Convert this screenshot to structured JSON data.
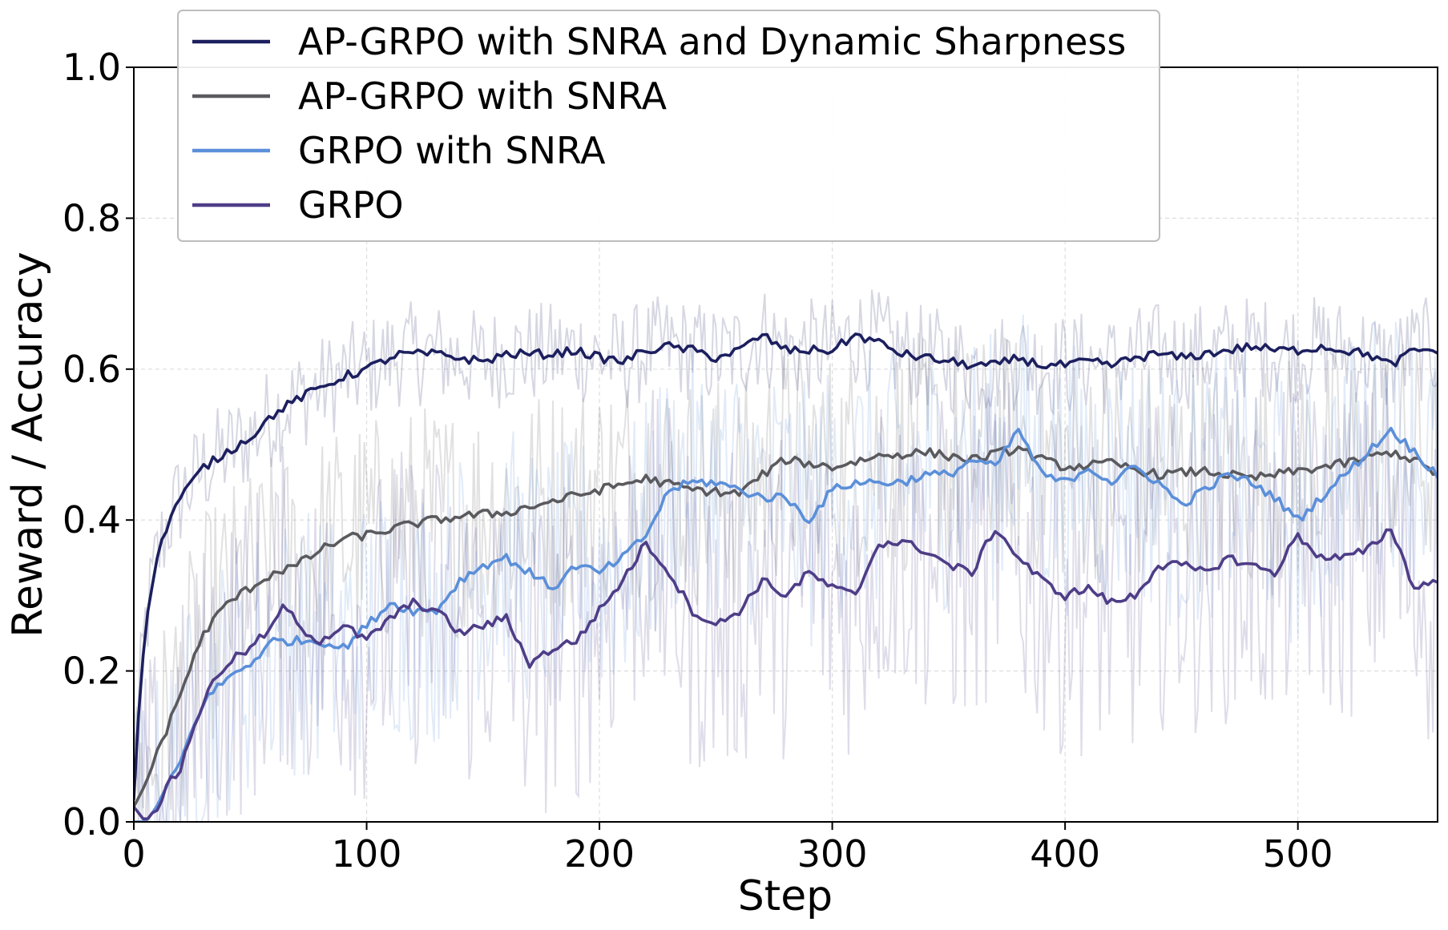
{
  "chart_data": {
    "type": "line",
    "title": "",
    "xlabel": "Step",
    "ylabel": "Reward / Accuracy",
    "xlim": [
      0,
      560
    ],
    "ylim": [
      0,
      1.0
    ],
    "x_ticks": [
      0,
      100,
      200,
      300,
      400,
      500
    ],
    "x_tick_labels": [
      "0",
      "100",
      "200",
      "300",
      "400",
      "500"
    ],
    "y_ticks": [
      0.0,
      0.2,
      0.4,
      0.6,
      0.8,
      1.0
    ],
    "y_tick_labels": [
      "0.0",
      "0.2",
      "0.4",
      "0.6",
      "0.8",
      "1.0"
    ],
    "grid": true,
    "legend_position": "top-left",
    "raw_traces_shown": true,
    "series": [
      {
        "name": "AP-GRPO with SNRA and Dynamic Sharpness",
        "color": "#1c1f5e",
        "x": [
          0,
          2,
          5,
          10,
          15,
          20,
          25,
          30,
          40,
          50,
          60,
          70,
          80,
          90,
          100,
          110,
          115,
          130,
          140,
          150,
          160,
          170,
          180,
          190,
          200,
          210,
          220,
          230,
          240,
          250,
          260,
          270,
          280,
          290,
          300,
          310,
          320,
          330,
          340,
          350,
          360,
          370,
          380,
          390,
          400,
          410,
          420,
          430,
          440,
          450,
          460,
          470,
          480,
          490,
          500,
          510,
          520,
          530,
          540,
          550,
          560
        ],
        "values": [
          0.03,
          0.14,
          0.26,
          0.35,
          0.4,
          0.43,
          0.45,
          0.47,
          0.49,
          0.51,
          0.54,
          0.56,
          0.575,
          0.59,
          0.6,
          0.615,
          0.62,
          0.62,
          0.615,
          0.61,
          0.62,
          0.62,
          0.62,
          0.625,
          0.615,
          0.61,
          0.625,
          0.63,
          0.625,
          0.615,
          0.625,
          0.645,
          0.625,
          0.625,
          0.625,
          0.645,
          0.635,
          0.62,
          0.615,
          0.61,
          0.605,
          0.605,
          0.615,
          0.605,
          0.605,
          0.61,
          0.605,
          0.615,
          0.62,
          0.615,
          0.62,
          0.625,
          0.63,
          0.625,
          0.625,
          0.63,
          0.625,
          0.62,
          0.605,
          0.625,
          0.625
        ]
      },
      {
        "name": "AP-GRPO with SNRA",
        "color": "#5a5a5e",
        "x": [
          0,
          5,
          10,
          15,
          20,
          25,
          30,
          40,
          50,
          60,
          70,
          80,
          90,
          100,
          120,
          140,
          160,
          180,
          200,
          220,
          240,
          260,
          270,
          280,
          300,
          320,
          340,
          360,
          380,
          390,
          400,
          420,
          440,
          460,
          480,
          500,
          520,
          540,
          550,
          560
        ],
        "values": [
          0.02,
          0.05,
          0.09,
          0.13,
          0.17,
          0.21,
          0.25,
          0.29,
          0.31,
          0.33,
          0.34,
          0.36,
          0.375,
          0.38,
          0.395,
          0.405,
          0.41,
          0.425,
          0.44,
          0.455,
          0.44,
          0.435,
          0.46,
          0.48,
          0.47,
          0.485,
          0.49,
          0.48,
          0.495,
          0.48,
          0.47,
          0.475,
          0.46,
          0.465,
          0.455,
          0.465,
          0.475,
          0.49,
          0.48,
          0.46
        ]
      },
      {
        "name": "GRPO with SNRA",
        "color": "#5b8fd9",
        "x": [
          0,
          5,
          10,
          15,
          20,
          25,
          30,
          40,
          50,
          60,
          70,
          80,
          90,
          100,
          110,
          120,
          130,
          140,
          150,
          160,
          170,
          180,
          190,
          200,
          210,
          220,
          230,
          240,
          250,
          260,
          270,
          280,
          290,
          300,
          310,
          320,
          330,
          340,
          350,
          360,
          370,
          380,
          390,
          400,
          410,
          420,
          430,
          440,
          450,
          460,
          470,
          480,
          490,
          500,
          510,
          520,
          530,
          540,
          550,
          560
        ],
        "values": [
          0.0,
          0.0,
          0.02,
          0.05,
          0.08,
          0.12,
          0.16,
          0.19,
          0.21,
          0.24,
          0.24,
          0.24,
          0.23,
          0.26,
          0.29,
          0.28,
          0.28,
          0.32,
          0.34,
          0.35,
          0.33,
          0.31,
          0.34,
          0.33,
          0.35,
          0.38,
          0.44,
          0.45,
          0.45,
          0.44,
          0.43,
          0.43,
          0.4,
          0.44,
          0.45,
          0.45,
          0.45,
          0.46,
          0.46,
          0.48,
          0.47,
          0.52,
          0.46,
          0.45,
          0.47,
          0.45,
          0.47,
          0.45,
          0.42,
          0.44,
          0.46,
          0.45,
          0.43,
          0.4,
          0.43,
          0.46,
          0.49,
          0.52,
          0.49,
          0.46
        ]
      },
      {
        "name": "GRPO",
        "color": "#4e3d87",
        "x": [
          0,
          5,
          10,
          15,
          20,
          25,
          30,
          35,
          40,
          50,
          60,
          65,
          70,
          80,
          90,
          100,
          110,
          120,
          130,
          140,
          150,
          160,
          170,
          180,
          190,
          200,
          210,
          220,
          230,
          240,
          250,
          260,
          270,
          280,
          290,
          300,
          310,
          320,
          330,
          340,
          350,
          360,
          370,
          380,
          390,
          400,
          410,
          420,
          430,
          440,
          450,
          460,
          470,
          480,
          490,
          500,
          510,
          520,
          530,
          540,
          550,
          560
        ],
        "values": [
          0.02,
          0.0,
          0.02,
          0.05,
          0.07,
          0.12,
          0.16,
          0.19,
          0.21,
          0.23,
          0.26,
          0.29,
          0.26,
          0.24,
          0.26,
          0.24,
          0.27,
          0.29,
          0.28,
          0.25,
          0.26,
          0.27,
          0.21,
          0.23,
          0.24,
          0.28,
          0.32,
          0.37,
          0.33,
          0.28,
          0.26,
          0.28,
          0.32,
          0.3,
          0.33,
          0.31,
          0.3,
          0.37,
          0.37,
          0.36,
          0.34,
          0.33,
          0.39,
          0.35,
          0.32,
          0.3,
          0.31,
          0.29,
          0.3,
          0.34,
          0.34,
          0.33,
          0.35,
          0.34,
          0.33,
          0.38,
          0.35,
          0.35,
          0.36,
          0.39,
          0.31,
          0.32
        ]
      }
    ]
  }
}
